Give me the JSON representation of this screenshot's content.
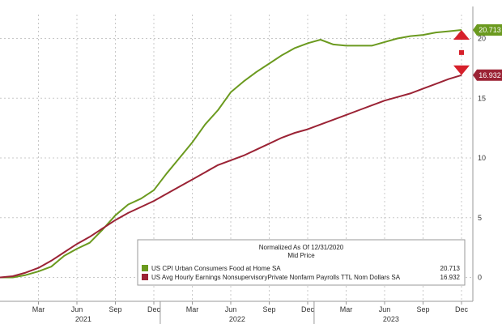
{
  "chart_data": {
    "type": "line",
    "title": "",
    "xlabel": "",
    "ylabel": "",
    "ylim": [
      -2,
      22
    ],
    "yticks": [
      0,
      5,
      10,
      15,
      20
    ],
    "grid": true,
    "legend_position": "bottom-center",
    "legend_title": "Normalized As Of 12/31/2020",
    "legend_subtitle": "Mid Price",
    "x_tick_labels": [
      "Mar",
      "Jun",
      "Sep",
      "Dec",
      "Mar",
      "Jun",
      "Sep",
      "Dec",
      "Mar",
      "Jun",
      "Sep",
      "Dec"
    ],
    "x_year_labels": [
      "2021",
      "2022",
      "2023"
    ],
    "x": [
      "2020-12",
      "2021-01",
      "2021-02",
      "2021-03",
      "2021-04",
      "2021-05",
      "2021-06",
      "2021-07",
      "2021-08",
      "2021-09",
      "2021-10",
      "2021-11",
      "2021-12",
      "2022-01",
      "2022-02",
      "2022-03",
      "2022-04",
      "2022-05",
      "2022-06",
      "2022-07",
      "2022-08",
      "2022-09",
      "2022-10",
      "2022-11",
      "2022-12",
      "2023-01",
      "2023-02",
      "2023-03",
      "2023-04",
      "2023-05",
      "2023-06",
      "2023-07",
      "2023-08",
      "2023-09",
      "2023-10",
      "2023-11",
      "2023-12"
    ],
    "series": [
      {
        "name": "US CPI Urban Consumers Food at Home SA",
        "color": "#6b9a1f",
        "last_value": "20.713",
        "values": [
          0,
          0,
          0.2,
          0.5,
          0.9,
          1.8,
          2.4,
          2.9,
          4.0,
          5.2,
          6.1,
          6.6,
          7.3,
          8.7,
          10.0,
          11.3,
          12.8,
          14.0,
          15.5,
          16.4,
          17.2,
          17.9,
          18.6,
          19.2,
          19.6,
          19.9,
          19.5,
          19.4,
          19.4,
          19.4,
          19.7,
          20.0,
          20.2,
          20.3,
          20.5,
          20.6,
          20.713
        ]
      },
      {
        "name": "US Avg Hourly Earnings NonsupervisoryPrivate Nonfarm Payrolls TTL Nom Dollars SA",
        "color": "#9b2335",
        "last_value": "16.932",
        "values": [
          0,
          0.1,
          0.4,
          0.8,
          1.4,
          2.1,
          2.8,
          3.4,
          4.1,
          4.8,
          5.4,
          5.9,
          6.4,
          7.0,
          7.6,
          8.2,
          8.8,
          9.4,
          9.8,
          10.2,
          10.7,
          11.2,
          11.7,
          12.1,
          12.4,
          12.8,
          13.2,
          13.6,
          14.0,
          14.4,
          14.8,
          15.1,
          15.4,
          15.8,
          16.2,
          16.6,
          16.932
        ]
      }
    ],
    "annotation": {
      "type": "double-arrow",
      "color": "#d6202b",
      "between_values": [
        16.932,
        20.713
      ]
    }
  }
}
